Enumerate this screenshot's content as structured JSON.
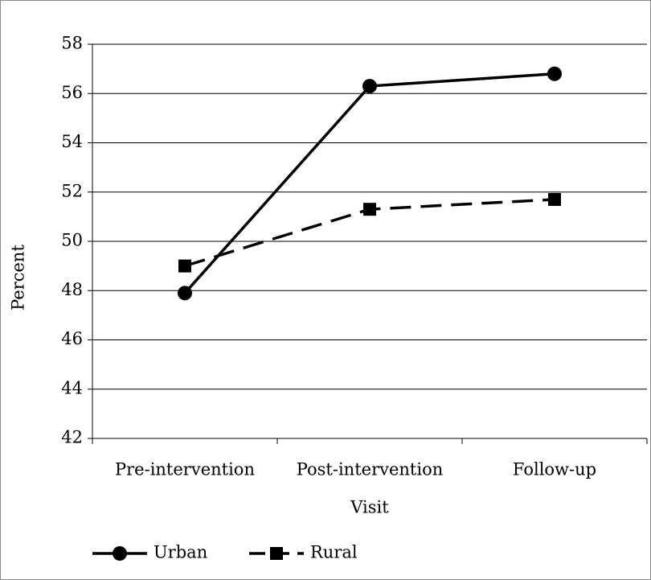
{
  "chart_data": {
    "type": "line",
    "x_label": "Visit",
    "y_label": "Percent",
    "categories": [
      "Pre-intervention",
      "Post-intervention",
      "Follow-up"
    ],
    "series": [
      {
        "name": "Urban",
        "color": "#000000",
        "marker": "circle",
        "dashed": false,
        "values": [
          47.9,
          56.3,
          56.8
        ]
      },
      {
        "name": "Rural",
        "color": "#000000",
        "marker": "square",
        "dashed": true,
        "values": [
          49.0,
          51.3,
          51.7
        ]
      }
    ],
    "ylim": [
      42,
      58
    ],
    "yticks": [
      42,
      44,
      46,
      48,
      50,
      52,
      54,
      56,
      58
    ],
    "grid": true,
    "legend": "bottom"
  }
}
